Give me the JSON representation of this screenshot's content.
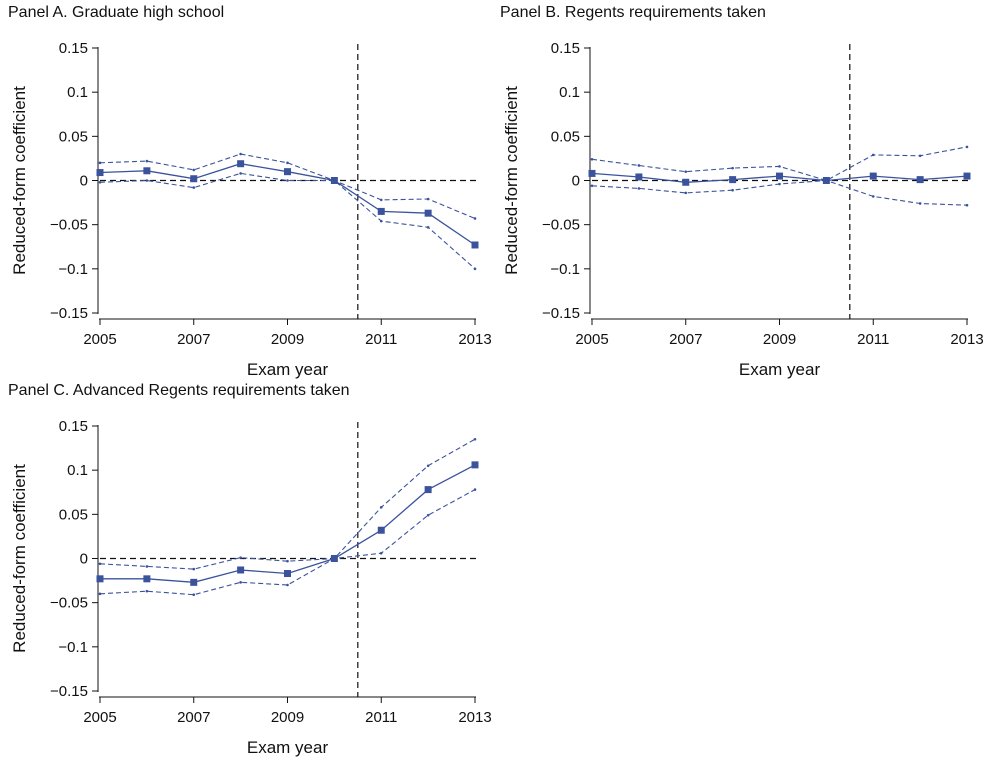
{
  "chart_data": [
    {
      "type": "line",
      "title": "Panel A. Graduate high school",
      "xlabel": "Exam year",
      "ylabel": "Reduced-form coefficient",
      "x": [
        2005,
        2006,
        2007,
        2008,
        2009,
        2010,
        2011,
        2012,
        2013
      ],
      "xticks": [
        "2005",
        "2007",
        "2009",
        "2011",
        "2013"
      ],
      "yticks": [
        "0.15",
        "0.1",
        "0.05",
        "0",
        "−0.05",
        "−0.1",
        "−0.15"
      ],
      "ylim": [
        -0.15,
        0.15
      ],
      "xlim": [
        2005,
        2013
      ],
      "reference_vline": 2010.5,
      "reference_hline": 0,
      "series": [
        {
          "role": "estimate",
          "values": [
            0.009,
            0.011,
            0.002,
            0.019,
            0.01,
            0.0,
            -0.035,
            -0.037,
            -0.073
          ]
        },
        {
          "role": "upper",
          "values": [
            0.02,
            0.022,
            0.012,
            0.03,
            0.02,
            0.0,
            -0.022,
            -0.021,
            -0.043
          ]
        },
        {
          "role": "lower",
          "values": [
            -0.002,
            0.0,
            -0.008,
            0.008,
            0.0,
            0.0,
            -0.046,
            -0.053,
            -0.1
          ]
        }
      ]
    },
    {
      "type": "line",
      "title": "Panel B. Regents requirements taken",
      "xlabel": "Exam year",
      "ylabel": "Reduced-form coefficient",
      "x": [
        2005,
        2006,
        2007,
        2008,
        2009,
        2010,
        2011,
        2012,
        2013
      ],
      "xticks": [
        "2005",
        "2007",
        "2009",
        "2011",
        "2013"
      ],
      "yticks": [
        "0.15",
        "0.1",
        "0.05",
        "0",
        "−0.05",
        "−0.1",
        "−0.15"
      ],
      "ylim": [
        -0.15,
        0.15
      ],
      "xlim": [
        2005,
        2013
      ],
      "reference_vline": 2010.5,
      "reference_hline": 0,
      "series": [
        {
          "role": "estimate",
          "values": [
            0.008,
            0.004,
            -0.002,
            0.001,
            0.005,
            0.0,
            0.005,
            0.001,
            0.005
          ]
        },
        {
          "role": "upper",
          "values": [
            0.024,
            0.017,
            0.01,
            0.014,
            0.016,
            0.0,
            0.029,
            0.028,
            0.038
          ]
        },
        {
          "role": "lower",
          "values": [
            -0.006,
            -0.009,
            -0.014,
            -0.011,
            -0.004,
            0.0,
            -0.018,
            -0.026,
            -0.028
          ]
        }
      ]
    },
    {
      "type": "line",
      "title": "Panel C. Advanced Regents requirements taken",
      "xlabel": "Exam year",
      "ylabel": "Reduced-form coefficient",
      "x": [
        2005,
        2006,
        2007,
        2008,
        2009,
        2010,
        2011,
        2012,
        2013
      ],
      "xticks": [
        "2005",
        "2007",
        "2009",
        "2011",
        "2013"
      ],
      "yticks": [
        "0.15",
        "0.1",
        "0.05",
        "0",
        "−0.05",
        "−0.1",
        "−0.15"
      ],
      "ylim": [
        -0.15,
        0.15
      ],
      "xlim": [
        2005,
        2013
      ],
      "reference_vline": 2010.5,
      "reference_hline": 0,
      "series": [
        {
          "role": "estimate",
          "values": [
            -0.023,
            -0.023,
            -0.027,
            -0.013,
            -0.017,
            0.0,
            0.032,
            0.078,
            0.106
          ]
        },
        {
          "role": "upper",
          "values": [
            -0.006,
            -0.009,
            -0.012,
            0.001,
            -0.003,
            0.0,
            0.058,
            0.105,
            0.135
          ]
        },
        {
          "role": "lower",
          "values": [
            -0.04,
            -0.037,
            -0.041,
            -0.027,
            -0.03,
            0.0,
            0.006,
            0.049,
            0.078
          ]
        }
      ]
    }
  ],
  "style": {
    "line_color": "#3b539c",
    "marker_color": "#3b539c",
    "axis_color": "#111111",
    "reference_line_color": "#111111"
  }
}
